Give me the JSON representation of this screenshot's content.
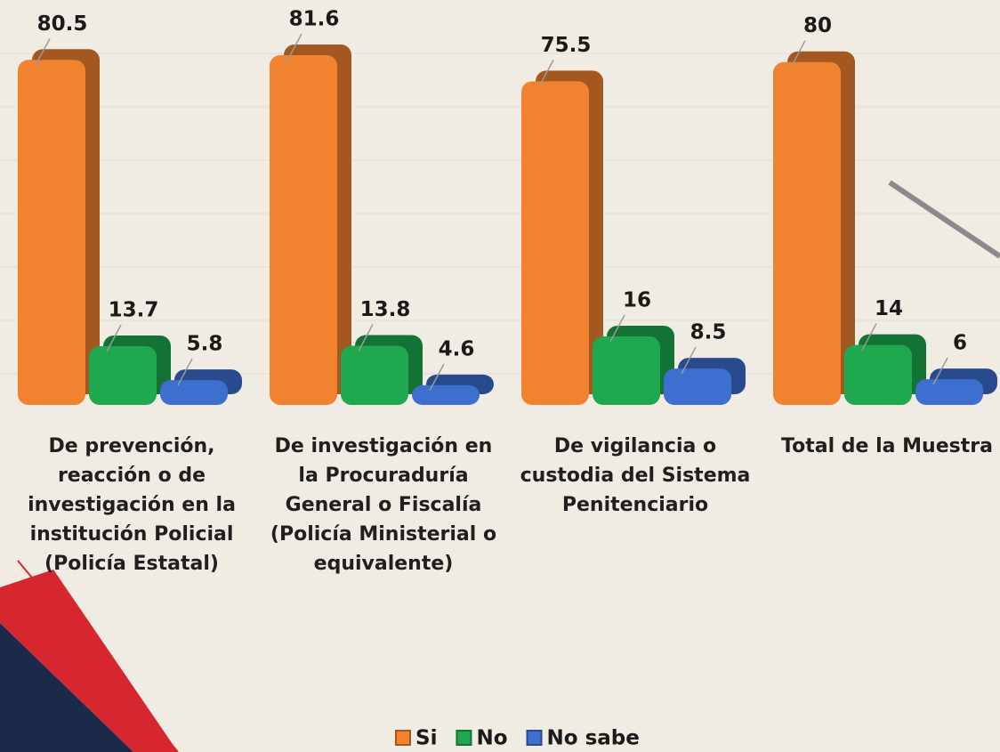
{
  "chart_data": {
    "type": "bar3d",
    "categories": [
      "De prevención, reacción o de investigación en la institución Policial (Policía Estatal)",
      "De investigación en la Procuraduría General o Fiscalía (Policía Ministerial o equivalente)",
      "De vigilancia o custodia del Sistema Penitenciario",
      "Total de la Muestra"
    ],
    "series": [
      {
        "name": "Si",
        "color": "#f08230",
        "values": [
          80.5,
          81.6,
          75.5,
          80
        ]
      },
      {
        "name": "No",
        "color": "#1fa84e",
        "values": [
          13.7,
          13.8,
          16,
          14
        ]
      },
      {
        "name": "No sabe",
        "color": "#3d6fcf",
        "values": [
          5.8,
          4.6,
          8.5,
          6
        ]
      }
    ],
    "legend": "bottom"
  }
}
